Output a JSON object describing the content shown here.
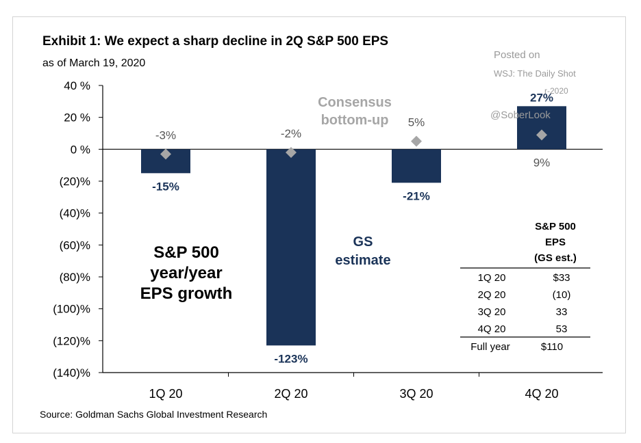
{
  "title": "Exhibit 1: We expect a sharp decline in 2Q S&P 500 EPS",
  "subtitle": "as of March 19,  2020",
  "source": "Source: Goldman Sachs Global Investment Research",
  "watermark": {
    "line1": "Posted on",
    "line2": "WSJ: The Daily Shot",
    "line3": "r-2020",
    "line4": "@SoberLook"
  },
  "annotations": {
    "consensus_line1": "Consensus",
    "consensus_line2": "bottom-up",
    "gs_line1": "GS",
    "gs_line2": "estimate",
    "growth_line1": "S&P 500",
    "growth_line2": "year/year",
    "growth_line3": "EPS growth"
  },
  "colors": {
    "bar": "#1a3358",
    "consensus_marker": "#a6a6a6",
    "consensus_text": "#a6a6a6"
  },
  "chart_data": {
    "type": "bar",
    "categories": [
      "1Q 20",
      "2Q 20",
      "3Q 20",
      "4Q 20"
    ],
    "series": [
      {
        "name": "GS estimate",
        "values": [
          -15,
          -123,
          -21,
          27
        ],
        "labels": [
          "-15%",
          "-123%",
          "-21%",
          "27%"
        ]
      },
      {
        "name": "Consensus bottom-up",
        "values": [
          -3,
          -2,
          5,
          9
        ],
        "labels": [
          "-3%",
          "-2%",
          "5%",
          "9%"
        ]
      }
    ],
    "ylim": [
      -140,
      40
    ],
    "yticks": [
      40,
      20,
      0,
      -20,
      -40,
      -60,
      -80,
      -100,
      -120,
      -140
    ],
    "ytick_labels": [
      "40 %",
      "20 %",
      "0 %",
      "(20)%",
      "(40)%",
      "(60)%",
      "(80)%",
      "(100)%",
      "(120)%",
      "(140)%"
    ],
    "grid": false
  },
  "eps_table": {
    "header": [
      "S&P 500",
      "EPS",
      "(GS est.)"
    ],
    "rows": [
      {
        "label": "1Q 20",
        "value": "$33"
      },
      {
        "label": "2Q 20",
        "value": "(10)"
      },
      {
        "label": "3Q 20",
        "value": "33"
      },
      {
        "label": "4Q 20",
        "value": "53"
      }
    ],
    "total": {
      "label": "Full year",
      "value": "$110"
    }
  }
}
